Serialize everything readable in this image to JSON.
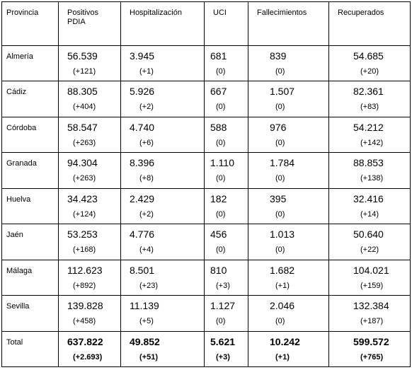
{
  "headers": {
    "provincia": "Provincia",
    "positivos_1": "Positivos",
    "positivos_2": "PDIA",
    "hospitalizacion": "Hospitalización",
    "uci": "UCI",
    "fallecimientos": "Fallecimientos",
    "recuperados": "Recuperados"
  },
  "rows": [
    {
      "name": "Almería",
      "pos": "56.539",
      "pos_d": "(+121)",
      "hosp": "3.945",
      "hosp_d": "(+1)",
      "uci": "681",
      "uci_d": "(0)",
      "fall": "839",
      "fall_d": "(0)",
      "rec": "54.685",
      "rec_d": "(+20)"
    },
    {
      "name": "Cádiz",
      "pos": "88.305",
      "pos_d": "(+404)",
      "hosp": "5.926",
      "hosp_d": "(+2)",
      "uci": "667",
      "uci_d": "(0)",
      "fall": "1.507",
      "fall_d": "(0)",
      "rec": "82.361",
      "rec_d": "(+83)"
    },
    {
      "name": "Córdoba",
      "pos": "58.547",
      "pos_d": "(+263)",
      "hosp": "4.740",
      "hosp_d": "(+6)",
      "uci": "588",
      "uci_d": "(0)",
      "fall": "976",
      "fall_d": "(0)",
      "rec": "54.212",
      "rec_d": "(+142)"
    },
    {
      "name": "Granada",
      "pos": "94.304",
      "pos_d": "(+263)",
      "hosp": "8.396",
      "hosp_d": "(+8)",
      "uci": "1.110",
      "uci_d": "(0)",
      "fall": "1.784",
      "fall_d": "(0)",
      "rec": "88.853",
      "rec_d": "(+138)"
    },
    {
      "name": "Huelva",
      "pos": "34.423",
      "pos_d": "(+124)",
      "hosp": "2.429",
      "hosp_d": "(+2)",
      "uci": "182",
      "uci_d": "(0)",
      "fall": "395",
      "fall_d": "(0)",
      "rec": "32.416",
      "rec_d": "(+14)"
    },
    {
      "name": "Jaén",
      "pos": "53.253",
      "pos_d": "(+168)",
      "hosp": "4.776",
      "hosp_d": "(+4)",
      "uci": "456",
      "uci_d": "(0)",
      "fall": "1.013",
      "fall_d": "(0)",
      "rec": "50.640",
      "rec_d": "(+22)"
    },
    {
      "name": "Málaga",
      "pos": "112.623",
      "pos_d": "(+892)",
      "hosp": "8.501",
      "hosp_d": "(+23)",
      "uci": "810",
      "uci_d": "(+3)",
      "fall": "1.682",
      "fall_d": "(+1)",
      "rec": "104.021",
      "rec_d": "(+159)"
    },
    {
      "name": "Sevilla",
      "pos": "139.828",
      "pos_d": "(+458)",
      "hosp": "11.139",
      "hosp_d": "(+5)",
      "uci": "1.127",
      "uci_d": "(0)",
      "fall": "2.046",
      "fall_d": "(0)",
      "rec": "132.384",
      "rec_d": "(+187)"
    }
  ],
  "total": {
    "name": "Total",
    "pos": "637.822",
    "pos_d": "(+2.693)",
    "hosp": "49.852",
    "hosp_d": "(+51)",
    "uci": "5.621",
    "uci_d": "(+3)",
    "fall": "10.242",
    "fall_d": "(+1)",
    "rec": "599.572",
    "rec_d": "(+765)"
  }
}
